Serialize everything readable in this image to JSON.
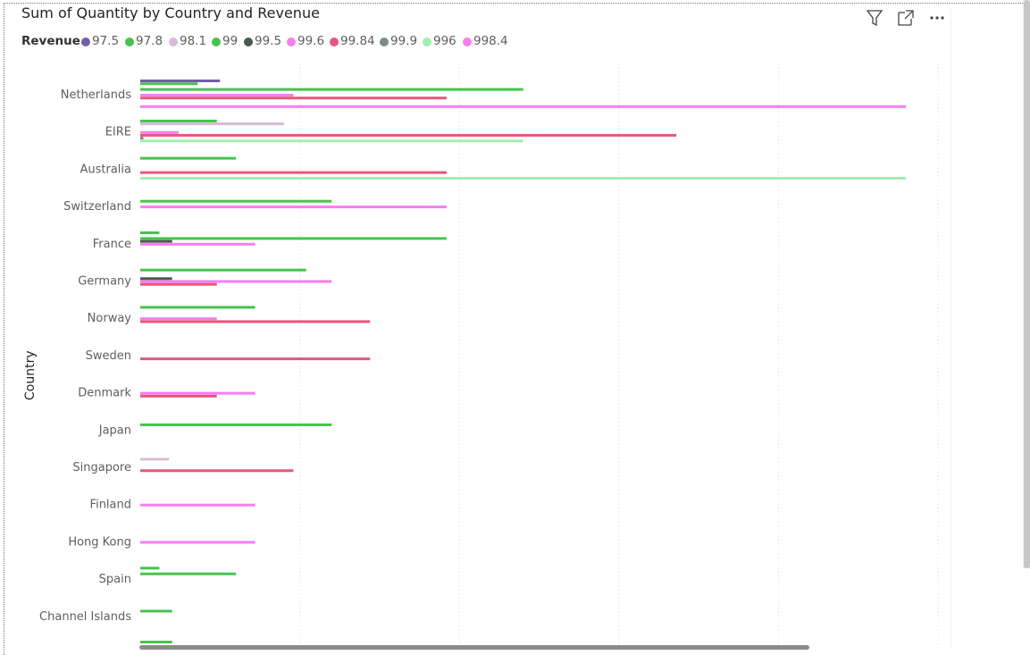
{
  "title": "Sum of Quantity by Country and Revenue",
  "header_icons": [
    "filter-icon",
    "focus-mode-icon",
    "more-options-icon"
  ],
  "legend": {
    "title": "Revenue",
    "items": [
      {
        "label": "97.5",
        "color": "#7160a8"
      },
      {
        "label": "97.8",
        "color": "#46c34e"
      },
      {
        "label": "98.1",
        "color": "#d7bcd9"
      },
      {
        "label": "99",
        "color": "#46c34e"
      },
      {
        "label": "99.5",
        "color": "#4a5a4d"
      },
      {
        "label": "99.6",
        "color": "#f67ef0"
      },
      {
        "label": "99.84",
        "color": "#e8567a"
      },
      {
        "label": "99.9",
        "color": "#7d8c80"
      },
      {
        "label": "996",
        "color": "#a6ecb4"
      },
      {
        "label": "998.4",
        "color": "#f67ef0"
      }
    ]
  },
  "chart_data": {
    "type": "bar",
    "orientation": "horizontal",
    "title": "Sum of Quantity by Country and Revenue",
    "ylabel": "Country",
    "xlabel": "",
    "xlim": [
      0,
      50
    ],
    "grid": true,
    "legend_position": "top-left",
    "categories": [
      "Netherlands",
      "EIRE",
      "Australia",
      "Switzerland",
      "France",
      "Germany",
      "Norway",
      "Sweden",
      "Denmark",
      "Japan",
      "Singapore",
      "Finland",
      "Hong Kong",
      "Spain",
      "Channel Islands"
    ],
    "series": [
      {
        "name": "97.5",
        "color": "#7160a8",
        "values": [
          5,
          null,
          null,
          null,
          null,
          null,
          null,
          null,
          null,
          null,
          null,
          null,
          null,
          null,
          null
        ]
      },
      {
        "name": "97.8",
        "color": "#46c34e",
        "values": [
          3.6,
          4.8,
          6,
          null,
          1.2,
          10.4,
          7.2,
          null,
          null,
          null,
          null,
          null,
          null,
          1.2,
          null
        ]
      },
      {
        "name": "98.1",
        "color": "#d7bcd9",
        "values": [
          null,
          9,
          null,
          null,
          null,
          null,
          null,
          null,
          null,
          null,
          1.8,
          null,
          null,
          null,
          null
        ]
      },
      {
        "name": "99",
        "color": "#46c34e",
        "values": [
          24,
          null,
          null,
          12,
          19.2,
          null,
          null,
          null,
          null,
          12,
          null,
          null,
          null,
          6,
          2
        ]
      },
      {
        "name": "99.5",
        "color": "#4a5a4d",
        "values": [
          null,
          null,
          null,
          null,
          2,
          2,
          null,
          null,
          null,
          null,
          null,
          null,
          null,
          null,
          null
        ]
      },
      {
        "name": "99.6",
        "color": "#f67ef0",
        "values": [
          9.6,
          2.4,
          null,
          19.2,
          7.2,
          12,
          4.8,
          null,
          7.2,
          null,
          null,
          7.2,
          7.2,
          null,
          null
        ]
      },
      {
        "name": "99.84",
        "color": "#e8567a",
        "values": [
          19.2,
          33.6,
          19.2,
          null,
          null,
          4.8,
          14.4,
          14.4,
          4.8,
          null,
          9.6,
          null,
          null,
          null,
          null
        ]
      },
      {
        "name": "99.9",
        "color": "#7d8c80",
        "values": [
          null,
          0.2,
          null,
          null,
          null,
          null,
          null,
          null,
          null,
          null,
          null,
          null,
          null,
          null,
          null
        ]
      },
      {
        "name": "996",
        "color": "#a6ecb4",
        "values": [
          null,
          24,
          48,
          null,
          null,
          null,
          null,
          null,
          null,
          null,
          null,
          null,
          null,
          null,
          null
        ]
      },
      {
        "name": "998.4",
        "color": "#f67ef0",
        "values": [
          48,
          null,
          null,
          null,
          null,
          null,
          null,
          null,
          null,
          null,
          null,
          null,
          null,
          null,
          null
        ]
      }
    ]
  }
}
